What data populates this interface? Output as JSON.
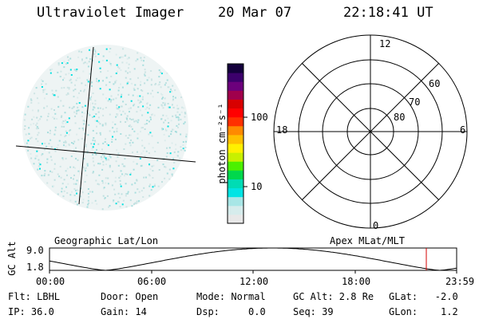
{
  "header": {
    "instrument": "Ultraviolet Imager",
    "date": "20 Mar 07",
    "time": "22:18:41 UT"
  },
  "colorbar": {
    "unit_label": "photon cm⁻²s⁻¹",
    "tick_labels": [
      "100",
      "10"
    ],
    "colors": [
      "#e8e8e8",
      "#d6ecec",
      "#a8e6e6",
      "#00e4e4",
      "#00dcb4",
      "#00d84c",
      "#4cf000",
      "#c8f000",
      "#fff000",
      "#ffc000",
      "#ff8a00",
      "#ff3000",
      "#ff0000",
      "#d80000",
      "#a0004c",
      "#6c007c",
      "#3c006c",
      "#14003c"
    ],
    "speck_colors": [
      "#cfe5e5",
      "#bfe0e0",
      "#a8dede",
      "#00e0e0",
      "#dcecec"
    ]
  },
  "polar_plot": {
    "mlt_labels": {
      "top": "12",
      "left": "18",
      "right": "6",
      "bottom": "0"
    },
    "lat_labels": [
      "60",
      "70",
      "80"
    ]
  },
  "orbit": {
    "gc_alt_label": "GC Alt",
    "y_ticks": [
      "9.0",
      "1.8"
    ],
    "left_title": "Geographic Lat/Lon",
    "right_title": "Apex MLat/MLT",
    "x_ticks": [
      "00:00",
      "06:00",
      "12:00",
      "18:00",
      "23:59"
    ],
    "current_marker_color": "#d40000"
  },
  "status": {
    "flt": "Flt: LBHL",
    "ip": "IP: 36.0",
    "door": "Door: Open",
    "gain": "Gain: 14",
    "mode": "Mode: Normal",
    "dsp": "Dsp:     0.0",
    "gc_alt": "GC Alt: 2.8 Re",
    "seq": "Seq: 39",
    "glat": "GLat:   -2.0",
    "glon": "GLon:    1.2"
  }
}
